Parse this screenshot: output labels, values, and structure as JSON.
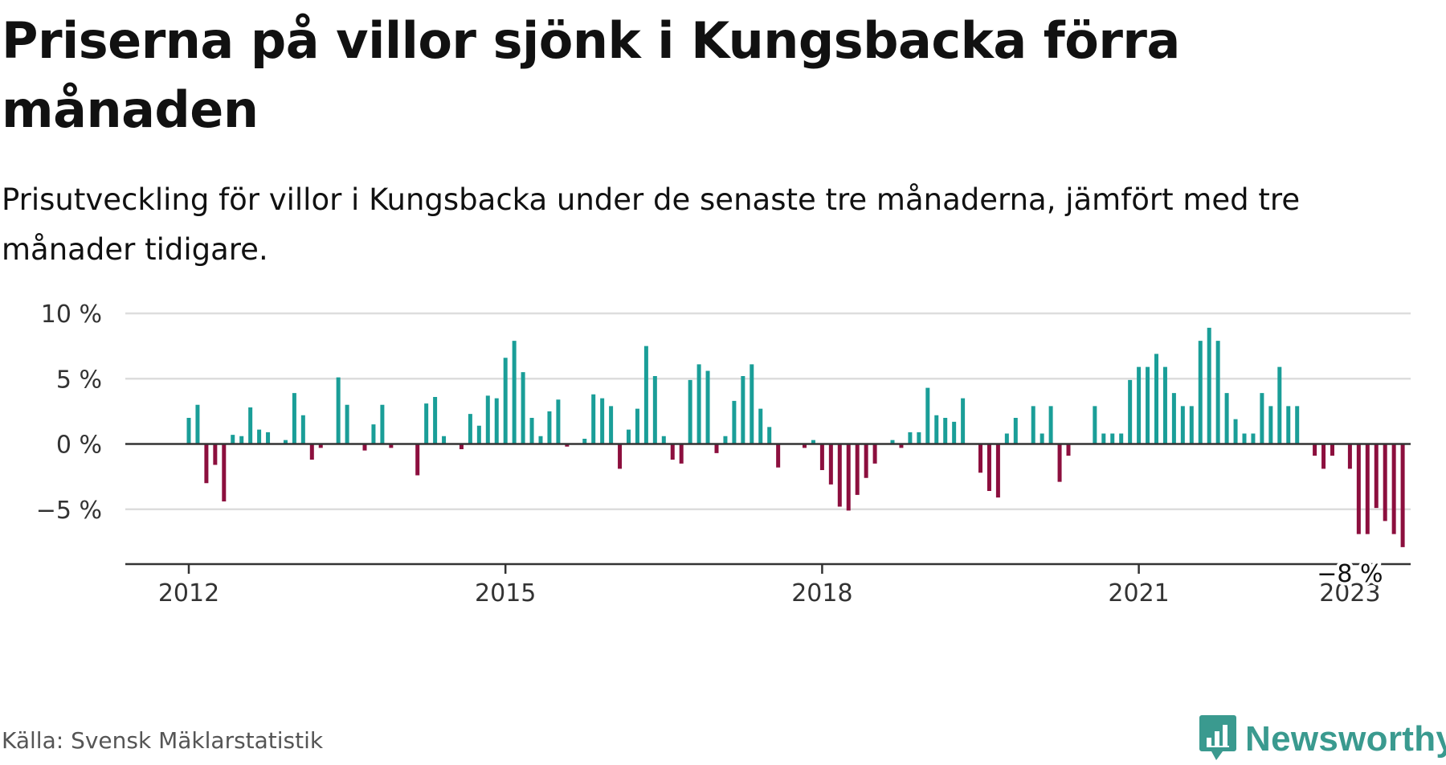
{
  "title": "Priserna på villor sjönk i Kungsbacka förra månaden",
  "subtitle": "Prisutveckling för villor i Kungsbacka under de senaste tre månaderna, jämfört med tre månader tidigare.",
  "source": "Källa: Svensk Mäklarstatistik",
  "brand": {
    "name": "Newsworthy",
    "icon": "newsworthy-logo-icon",
    "color": "#3a9a8f"
  },
  "colors": {
    "positive": "#1a9e98",
    "negative": "#8c0f3e",
    "grid": "#dddddd",
    "axis": "#333333"
  },
  "chart_data": {
    "type": "bar",
    "title": "",
    "xlabel": "",
    "ylabel": "",
    "ylim": [
      -9.2,
      10
    ],
    "yticks": [
      10,
      5,
      0,
      -5
    ],
    "ytick_labels": [
      "10 %",
      "5 %",
      "0 %",
      "−5 %"
    ],
    "xticks": [
      {
        "index": 0,
        "label": "2012"
      },
      {
        "index": 36,
        "label": "2015"
      },
      {
        "index": 72,
        "label": "2018"
      },
      {
        "index": 108,
        "label": "2021"
      },
      {
        "index": 132,
        "label": "2023"
      }
    ],
    "start": "2012-01",
    "annotation": {
      "index": 132,
      "label": "−8 %"
    },
    "values": [
      2.0,
      3.0,
      -3.0,
      -1.6,
      -4.4,
      0.7,
      0.6,
      2.8,
      1.1,
      0.9,
      0.0,
      0.3,
      3.9,
      2.2,
      -1.2,
      -0.3,
      0.0,
      5.1,
      3.0,
      0.0,
      -0.5,
      1.5,
      3.0,
      -0.3,
      0.0,
      0.0,
      -2.4,
      3.1,
      3.6,
      0.6,
      0.0,
      -0.4,
      2.3,
      1.4,
      3.7,
      3.5,
      6.6,
      7.9,
      5.5,
      2.0,
      0.6,
      2.5,
      3.4,
      -0.2,
      0.0,
      0.4,
      3.8,
      3.5,
      2.9,
      -1.9,
      1.1,
      2.7,
      7.5,
      5.2,
      0.6,
      -1.2,
      -1.5,
      4.9,
      6.1,
      5.6,
      -0.7,
      0.6,
      3.3,
      5.2,
      6.1,
      2.7,
      1.3,
      -1.8,
      0.0,
      0.0,
      -0.3,
      0.3,
      -2.0,
      -3.1,
      -4.8,
      -5.1,
      -3.9,
      -2.6,
      -1.5,
      0.0,
      0.3,
      -0.3,
      0.9,
      0.9,
      4.3,
      2.2,
      2.0,
      1.7,
      3.5,
      0.0,
      -2.2,
      -3.6,
      -4.1,
      0.8,
      2.0,
      0.0,
      2.9,
      0.8,
      2.9,
      -2.9,
      -0.9,
      0.0,
      0.0,
      2.9,
      0.8,
      0.8,
      0.8,
      4.9,
      5.9,
      5.9,
      6.9,
      5.9,
      3.9,
      2.9,
      2.9,
      7.9,
      8.9,
      7.9,
      3.9,
      1.9,
      0.8,
      0.8,
      3.9,
      2.9,
      5.9,
      2.9,
      2.9,
      0.0,
      -0.9,
      -1.9,
      -0.9,
      0.0,
      -1.9,
      -6.9,
      -6.9,
      -4.9,
      -5.9,
      -6.9,
      -7.9
    ]
  }
}
